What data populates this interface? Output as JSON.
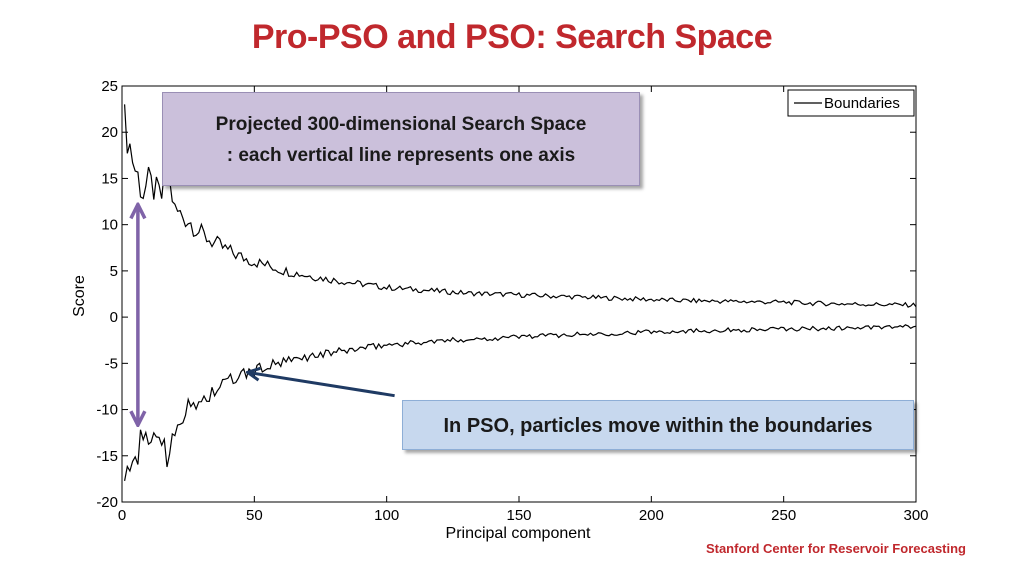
{
  "slide": {
    "title": "Pro-PSO and PSO: Search Space",
    "footer": "Stanford Center for Reservoir Forecasting",
    "title_color": "#c0282d"
  },
  "callouts": {
    "search_space_line1": "Projected 300-dimensional Search Space",
    "search_space_line2": ": each vertical line represents one axis",
    "pso": "In PSO, particles move within the boundaries",
    "search_space_color": "#cbc0db",
    "pso_color": "#c7d8ee"
  },
  "chart_data": {
    "type": "line",
    "xlabel": "Principal component",
    "ylabel": "Score",
    "xlim": [
      0,
      300
    ],
    "ylim": [
      -20,
      25
    ],
    "xticks": [
      0,
      50,
      100,
      150,
      200,
      250,
      300
    ],
    "yticks": [
      25,
      20,
      15,
      10,
      5,
      0,
      -5,
      -10,
      -15,
      -20
    ],
    "legend": {
      "entries": [
        "Boundaries"
      ],
      "placement": "top-right"
    },
    "grid": false,
    "series": [
      {
        "name": "Boundaries",
        "part": "upper",
        "color": "#000000",
        "x": [
          1,
          3,
          5,
          8,
          10,
          13,
          15,
          17,
          20,
          25,
          30,
          35,
          40,
          45,
          50,
          55,
          60,
          70,
          80,
          90,
          100,
          110,
          120,
          130,
          140,
          150,
          160,
          170,
          180,
          190,
          200,
          210,
          220,
          230,
          240,
          250,
          260,
          270,
          280,
          290,
          300
        ],
        "y": [
          21,
          18.5,
          16,
          13.5,
          14.5,
          13.5,
          13,
          16,
          11.5,
          10.5,
          9,
          8,
          7.2,
          6.5,
          6,
          5.6,
          5.1,
          4.5,
          4,
          3.6,
          3.2,
          3,
          2.8,
          2.6,
          2.5,
          2.4,
          2.3,
          2.2,
          2.1,
          2,
          1.9,
          1.8,
          1.75,
          1.7,
          1.65,
          1.6,
          1.5,
          1.45,
          1.4,
          1.35,
          1.3
        ]
      },
      {
        "name": "Boundaries",
        "part": "lower",
        "color": "#000000",
        "x": [
          1,
          3,
          5,
          8,
          10,
          13,
          15,
          17,
          20,
          25,
          30,
          35,
          40,
          45,
          50,
          55,
          60,
          70,
          80,
          90,
          100,
          110,
          120,
          130,
          140,
          150,
          160,
          170,
          180,
          190,
          200,
          210,
          220,
          230,
          240,
          250,
          260,
          270,
          280,
          290,
          300
        ],
        "y": [
          -17,
          -18,
          -14.5,
          -14,
          -13,
          -12.5,
          -13,
          -15.5,
          -11.5,
          -10,
          -9,
          -8,
          -7,
          -6.3,
          -5.8,
          -5.3,
          -5,
          -4.3,
          -3.8,
          -3.4,
          -3,
          -2.8,
          -2.6,
          -2.4,
          -2.3,
          -2.1,
          -2,
          -1.9,
          -1.8,
          -1.7,
          -1.6,
          -1.5,
          -1.45,
          -1.4,
          -1.35,
          -1.3,
          -1.25,
          -1.2,
          -1.15,
          -1.1,
          -1.05
        ]
      }
    ],
    "annotations": {
      "double_arrow": {
        "x": 6,
        "y_top": 12,
        "y_bottom": -11.5,
        "color": "#7f63a8"
      },
      "pointer_arrow": {
        "from_x": 103,
        "from_y": -8.5,
        "to_x": 48,
        "to_y": -6,
        "color": "#1f3a63"
      }
    }
  }
}
